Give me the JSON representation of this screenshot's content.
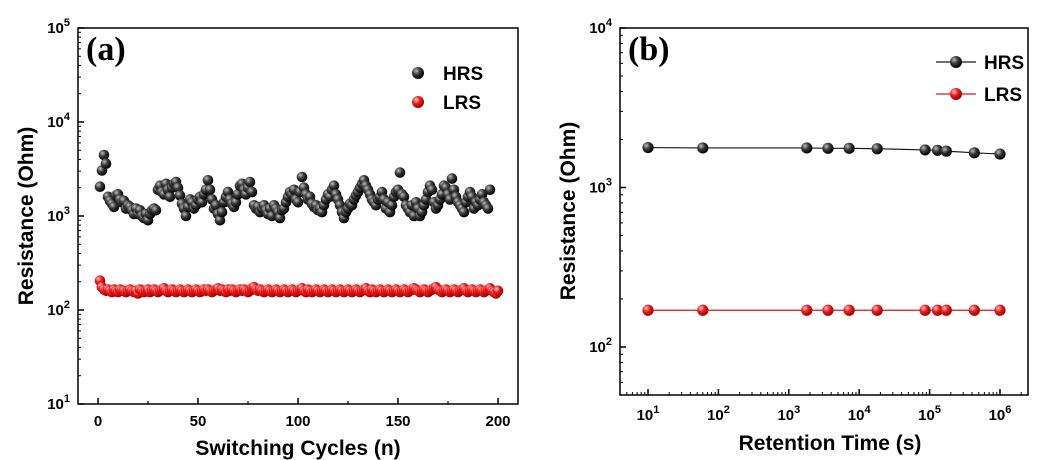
{
  "chart_data": [
    {
      "type": "scatter",
      "panel_label": "(a)",
      "xlabel": "Switching Cycles (n)",
      "ylabel": "Resistance (Ohm)",
      "xlim": [
        -10,
        210
      ],
      "ylim": [
        10,
        100000
      ],
      "yscale": "log",
      "xticks": [
        "0",
        "50",
        "100",
        "150",
        "200"
      ],
      "yticks": [
        {
          "base": "10",
          "exp": "1"
        },
        {
          "base": "10",
          "exp": "2"
        },
        {
          "base": "10",
          "exp": "3"
        },
        {
          "base": "10",
          "exp": "4"
        },
        {
          "base": "10",
          "exp": "5"
        }
      ],
      "legend_position": "top-right",
      "series": [
        {
          "name": "HRS",
          "color": "#1a1a1a",
          "x_start": 1,
          "x_step": 1,
          "values": [
            2050,
            3050,
            4450,
            3600,
            1600,
            1450,
            1350,
            1250,
            1650,
            1700,
            1500,
            1400,
            1450,
            1200,
            1300,
            1250,
            1150,
            1050,
            1200,
            1050,
            1150,
            1000,
            950,
            1050,
            900,
            1050,
            1150,
            1200,
            1150,
            1900,
            2100,
            1800,
            1700,
            2200,
            1900,
            1600,
            2000,
            2200,
            2300,
            2000,
            1650,
            1350,
            1200,
            1000,
            1250,
            1500,
            1400,
            1200,
            1300,
            1500,
            1600,
            1400,
            1700,
            1900,
            2400,
            1900,
            1500,
            1200,
            1300,
            1050,
            900,
            1100,
            1400,
            1600,
            1800,
            1500,
            1350,
            1250,
            1400,
            1700,
            2100,
            2200,
            1900,
            1700,
            2000,
            2300,
            1800,
            1300,
            1200,
            1250,
            1100,
            1200,
            1300,
            1150,
            1050,
            1200,
            1000,
            1300,
            1200,
            1100,
            950,
            1150,
            1200,
            1400,
            1600,
            1800,
            1700,
            1900,
            1500,
            1400,
            1800,
            2600,
            2000,
            1700,
            1500,
            1600,
            1350,
            1250,
            1300,
            1150,
            1200,
            1100,
            1300,
            1500,
            1700,
            1600,
            1900,
            2100,
            1700,
            1500,
            1300,
            1100,
            950,
            1100,
            1200,
            1350,
            1300,
            1500,
            1650,
            1800,
            2000,
            2200,
            2400,
            2100,
            1900,
            1700,
            1500,
            1400,
            1300,
            1500,
            1600,
            1800,
            1500,
            1200,
            1400,
            1100,
            1300,
            1600,
            1800,
            1900,
            2900,
            1700,
            1600,
            1300,
            1200,
            1100,
            1300,
            1000,
            1400,
            1200,
            1000,
            1100,
            1300,
            1500,
            1800,
            2100,
            1900,
            1400,
            1200,
            1300,
            1500,
            1700,
            2100,
            2000,
            1700,
            1500,
            2500,
            1900,
            1600,
            1400,
            1300,
            1200,
            1100,
            1400,
            1600,
            1800,
            1600,
            1200,
            1400,
            1300,
            1500,
            1700,
            1400,
            1300,
            1200,
            1900
          ]
        },
        {
          "name": "LRS",
          "color": "#e8141c",
          "x_start": 1,
          "x_step": 1,
          "values": [
            205,
            175,
            165,
            160,
            165,
            160,
            155,
            165,
            160,
            155,
            165,
            160,
            160,
            155,
            160,
            165,
            160,
            155,
            160,
            150,
            165,
            160,
            155,
            160,
            165,
            155,
            160,
            165,
            160,
            155,
            160,
            165,
            170,
            160,
            155,
            160,
            165,
            160,
            155,
            160,
            165,
            160,
            155,
            160,
            165,
            160,
            155,
            160,
            165,
            160,
            155,
            160,
            165,
            160,
            165,
            160,
            155,
            160,
            165,
            170,
            160,
            165,
            160,
            155,
            165,
            160,
            165,
            160,
            155,
            160,
            165,
            160,
            165,
            160,
            155,
            160,
            170,
            175,
            165,
            160,
            165,
            160,
            155,
            160,
            165,
            160,
            155,
            160,
            165,
            160,
            155,
            160,
            165,
            160,
            155,
            160,
            165,
            160,
            155,
            160,
            165,
            170,
            160,
            155,
            165,
            160,
            155,
            160,
            165,
            160,
            155,
            160,
            165,
            160,
            155,
            160,
            165,
            160,
            155,
            160,
            165,
            160,
            155,
            160,
            165,
            160,
            155,
            160,
            165,
            160,
            155,
            160,
            165,
            170,
            160,
            155,
            165,
            160,
            155,
            160,
            165,
            160,
            155,
            160,
            165,
            160,
            155,
            160,
            165,
            160,
            155,
            160,
            165,
            160,
            155,
            160,
            165,
            170,
            165,
            160,
            155,
            160,
            165,
            160,
            155,
            160,
            165,
            170,
            175,
            165,
            160,
            155,
            160,
            165,
            160,
            155,
            160,
            165,
            160,
            155,
            160,
            165,
            170,
            160,
            155,
            160,
            165,
            160,
            155,
            160,
            165,
            160,
            155,
            160,
            165,
            170,
            160,
            155,
            150,
            160
          ]
        }
      ]
    },
    {
      "type": "line",
      "panel_label": "(b)",
      "xlabel": "Retention Time (s)",
      "ylabel": "Resistance (Ohm)",
      "xscale": "log",
      "yscale": "log",
      "xlim": [
        4,
        2500000
      ],
      "ylim": [
        50,
        10000
      ],
      "xticks": [
        {
          "base": "10",
          "exp": "1"
        },
        {
          "base": "10",
          "exp": "2"
        },
        {
          "base": "10",
          "exp": "3"
        },
        {
          "base": "10",
          "exp": "4"
        },
        {
          "base": "10",
          "exp": "5"
        },
        {
          "base": "10",
          "exp": "6"
        }
      ],
      "yticks": [
        {
          "base": "10",
          "exp": "2"
        },
        {
          "base": "10",
          "exp": "3"
        },
        {
          "base": "10",
          "exp": "4"
        }
      ],
      "legend_position": "top-right",
      "x": [
        10,
        60,
        1800,
        3600,
        7200,
        18000,
        86400,
        129600,
        172800,
        432000,
        1000000
      ],
      "series": [
        {
          "name": "HRS",
          "color": "#1a1a1a",
          "values": [
            1780,
            1770,
            1770,
            1760,
            1760,
            1750,
            1720,
            1710,
            1690,
            1650,
            1620
          ]
        },
        {
          "name": "LRS",
          "color": "#e8141c",
          "values": [
            170,
            170,
            170,
            170,
            170,
            170,
            170,
            170,
            170,
            170,
            170
          ]
        }
      ]
    }
  ]
}
